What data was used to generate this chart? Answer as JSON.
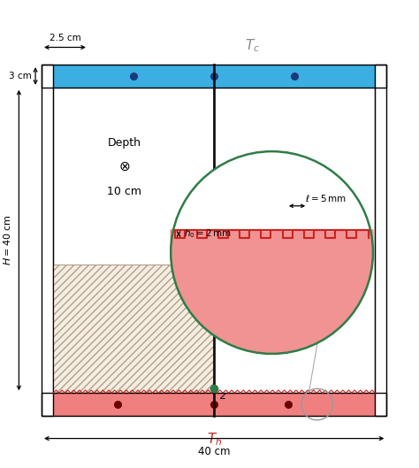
{
  "fig_width": 4.74,
  "fig_height": 5.29,
  "dpi": 100,
  "top_plate_color": "#3baee2",
  "bottom_plate_color": "#f08080",
  "dot_color_top": "#1a3a7a",
  "dot_color_bottom": "#6b0000",
  "hatch_facecolor": "#f5ede0",
  "circle_color": "#2e7d46",
  "black_line_color": "#111111",
  "green_dot_color": "#2e7d46",
  "title_top": "$T_c$",
  "title_bottom": "$T_h$",
  "label_H": "$H = 40$ cm",
  "annotation_z": "$z$",
  "teeth_red": "#cc2222",
  "red_fill": "#f08080"
}
